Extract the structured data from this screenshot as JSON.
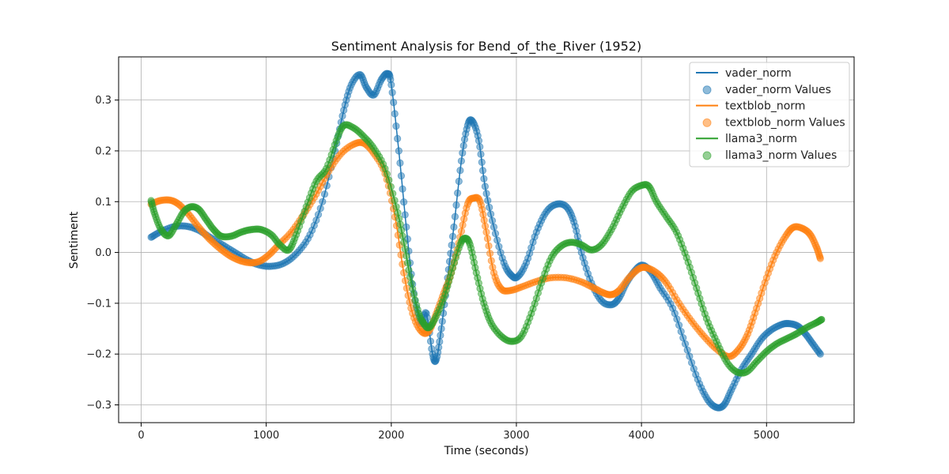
{
  "chart_data": {
    "type": "line",
    "title": "Sentiment Analysis for Bend_of_the_River (1952)",
    "xlabel": "Time (seconds)",
    "ylabel": "Sentiment",
    "xlim": [
      -180,
      5700
    ],
    "ylim": [
      -0.335,
      0.385
    ],
    "xticks": [
      0,
      1000,
      2000,
      3000,
      4000,
      5000
    ],
    "yticks": [
      -0.3,
      -0.2,
      -0.1,
      0.0,
      0.1,
      0.2,
      0.3
    ],
    "ytick_labels": [
      "−0.3",
      "−0.2",
      "−0.1",
      "0.0",
      "0.1",
      "0.2",
      "0.3"
    ],
    "grid": true,
    "legend_position": "top-right",
    "legend": [
      "vader_norm",
      "vader_norm Values",
      "textblob_norm",
      "textblob_norm Values",
      "llama3_norm",
      "llama3_norm Values"
    ],
    "series": [
      {
        "name": "vader_norm",
        "color": "#1f77b4",
        "points": [
          [
            80,
            0.03
          ],
          [
            150,
            0.04
          ],
          [
            250,
            0.05
          ],
          [
            350,
            0.052
          ],
          [
            450,
            0.045
          ],
          [
            550,
            0.03
          ],
          [
            650,
            0.015
          ],
          [
            750,
            0.0
          ],
          [
            850,
            -0.015
          ],
          [
            950,
            -0.025
          ],
          [
            1050,
            -0.027
          ],
          [
            1150,
            -0.02
          ],
          [
            1250,
            0.0
          ],
          [
            1350,
            0.035
          ],
          [
            1450,
            0.1
          ],
          [
            1550,
            0.2
          ],
          [
            1620,
            0.28
          ],
          [
            1680,
            0.33
          ],
          [
            1750,
            0.35
          ],
          [
            1800,
            0.325
          ],
          [
            1860,
            0.31
          ],
          [
            1920,
            0.34
          ],
          [
            1970,
            0.352
          ],
          [
            2000,
            0.33
          ],
          [
            2060,
            0.2
          ],
          [
            2120,
            0.05
          ],
          [
            2180,
            -0.08
          ],
          [
            2240,
            -0.14
          ],
          [
            2280,
            -0.12
          ],
          [
            2330,
            -0.2
          ],
          [
            2360,
            -0.21
          ],
          [
            2400,
            -0.15
          ],
          [
            2450,
            -0.05
          ],
          [
            2500,
            0.05
          ],
          [
            2560,
            0.18
          ],
          [
            2610,
            0.25
          ],
          [
            2650,
            0.258
          ],
          [
            2700,
            0.22
          ],
          [
            2750,
            0.13
          ],
          [
            2820,
            0.05
          ],
          [
            2900,
            -0.02
          ],
          [
            2960,
            -0.045
          ],
          [
            3010,
            -0.048
          ],
          [
            3080,
            -0.02
          ],
          [
            3160,
            0.04
          ],
          [
            3240,
            0.08
          ],
          [
            3320,
            0.095
          ],
          [
            3400,
            0.09
          ],
          [
            3460,
            0.06
          ],
          [
            3520,
            0.0
          ],
          [
            3600,
            -0.06
          ],
          [
            3680,
            -0.095
          ],
          [
            3760,
            -0.103
          ],
          [
            3820,
            -0.09
          ],
          [
            3880,
            -0.06
          ],
          [
            3950,
            -0.035
          ],
          [
            4010,
            -0.025
          ],
          [
            4080,
            -0.04
          ],
          [
            4150,
            -0.07
          ],
          [
            4250,
            -0.11
          ],
          [
            4350,
            -0.18
          ],
          [
            4450,
            -0.25
          ],
          [
            4530,
            -0.29
          ],
          [
            4600,
            -0.305
          ],
          [
            4660,
            -0.3
          ],
          [
            4720,
            -0.27
          ],
          [
            4800,
            -0.23
          ],
          [
            4880,
            -0.2
          ],
          [
            4960,
            -0.17
          ],
          [
            5040,
            -0.152
          ],
          [
            5120,
            -0.142
          ],
          [
            5180,
            -0.14
          ],
          [
            5250,
            -0.145
          ],
          [
            5310,
            -0.16
          ],
          [
            5370,
            -0.18
          ],
          [
            5430,
            -0.2
          ]
        ]
      },
      {
        "name": "textblob_norm",
        "color": "#ff7f0e",
        "points": [
          [
            80,
            0.095
          ],
          [
            150,
            0.102
          ],
          [
            230,
            0.103
          ],
          [
            300,
            0.095
          ],
          [
            380,
            0.075
          ],
          [
            460,
            0.05
          ],
          [
            540,
            0.028
          ],
          [
            620,
            0.01
          ],
          [
            700,
            -0.005
          ],
          [
            780,
            -0.015
          ],
          [
            860,
            -0.02
          ],
          [
            940,
            -0.018
          ],
          [
            1020,
            -0.005
          ],
          [
            1100,
            0.015
          ],
          [
            1200,
            0.04
          ],
          [
            1300,
            0.075
          ],
          [
            1400,
            0.115
          ],
          [
            1500,
            0.16
          ],
          [
            1600,
            0.195
          ],
          [
            1700,
            0.213
          ],
          [
            1780,
            0.215
          ],
          [
            1860,
            0.195
          ],
          [
            1950,
            0.155
          ],
          [
            2030,
            0.07
          ],
          [
            2100,
            -0.04
          ],
          [
            2170,
            -0.12
          ],
          [
            2240,
            -0.155
          ],
          [
            2300,
            -0.155
          ],
          [
            2360,
            -0.12
          ],
          [
            2420,
            -0.08
          ],
          [
            2480,
            -0.04
          ],
          [
            2550,
            0.03
          ],
          [
            2610,
            0.095
          ],
          [
            2660,
            0.107
          ],
          [
            2710,
            0.1
          ],
          [
            2760,
            0.04
          ],
          [
            2820,
            -0.04
          ],
          [
            2880,
            -0.072
          ],
          [
            2950,
            -0.075
          ],
          [
            3040,
            -0.068
          ],
          [
            3150,
            -0.058
          ],
          [
            3270,
            -0.05
          ],
          [
            3400,
            -0.05
          ],
          [
            3520,
            -0.058
          ],
          [
            3620,
            -0.07
          ],
          [
            3700,
            -0.08
          ],
          [
            3760,
            -0.083
          ],
          [
            3820,
            -0.075
          ],
          [
            3900,
            -0.05
          ],
          [
            3980,
            -0.032
          ],
          [
            4040,
            -0.03
          ],
          [
            4120,
            -0.04
          ],
          [
            4200,
            -0.06
          ],
          [
            4300,
            -0.1
          ],
          [
            4400,
            -0.135
          ],
          [
            4500,
            -0.165
          ],
          [
            4600,
            -0.19
          ],
          [
            4700,
            -0.205
          ],
          [
            4780,
            -0.19
          ],
          [
            4850,
            -0.16
          ],
          [
            4920,
            -0.11
          ],
          [
            5000,
            -0.05
          ],
          [
            5080,
            0.0
          ],
          [
            5160,
            0.035
          ],
          [
            5220,
            0.05
          ],
          [
            5290,
            0.047
          ],
          [
            5350,
            0.035
          ],
          [
            5400,
            0.01
          ],
          [
            5430,
            -0.012
          ]
        ]
      },
      {
        "name": "llama3_norm",
        "color": "#2ca02c",
        "points": [
          [
            80,
            0.102
          ],
          [
            110,
            0.075
          ],
          [
            160,
            0.045
          ],
          [
            220,
            0.033
          ],
          [
            280,
            0.055
          ],
          [
            340,
            0.08
          ],
          [
            400,
            0.09
          ],
          [
            460,
            0.085
          ],
          [
            520,
            0.065
          ],
          [
            580,
            0.045
          ],
          [
            640,
            0.032
          ],
          [
            720,
            0.032
          ],
          [
            800,
            0.04
          ],
          [
            880,
            0.045
          ],
          [
            960,
            0.045
          ],
          [
            1040,
            0.035
          ],
          [
            1110,
            0.015
          ],
          [
            1180,
            0.005
          ],
          [
            1240,
            0.035
          ],
          [
            1320,
            0.09
          ],
          [
            1400,
            0.14
          ],
          [
            1480,
            0.165
          ],
          [
            1560,
            0.22
          ],
          [
            1620,
            0.25
          ],
          [
            1700,
            0.245
          ],
          [
            1780,
            0.228
          ],
          [
            1860,
            0.205
          ],
          [
            1950,
            0.165
          ],
          [
            2040,
            0.09
          ],
          [
            2100,
            0.02
          ],
          [
            2160,
            -0.06
          ],
          [
            2220,
            -0.12
          ],
          [
            2260,
            -0.14
          ],
          [
            2300,
            -0.148
          ],
          [
            2350,
            -0.13
          ],
          [
            2420,
            -0.09
          ],
          [
            2480,
            -0.04
          ],
          [
            2550,
            0.015
          ],
          [
            2590,
            0.028
          ],
          [
            2630,
            0.015
          ],
          [
            2680,
            -0.04
          ],
          [
            2740,
            -0.1
          ],
          [
            2800,
            -0.14
          ],
          [
            2880,
            -0.165
          ],
          [
            2960,
            -0.175
          ],
          [
            3040,
            -0.165
          ],
          [
            3120,
            -0.12
          ],
          [
            3200,
            -0.06
          ],
          [
            3280,
            -0.01
          ],
          [
            3360,
            0.013
          ],
          [
            3440,
            0.02
          ],
          [
            3520,
            0.015
          ],
          [
            3600,
            0.005
          ],
          [
            3680,
            0.015
          ],
          [
            3760,
            0.045
          ],
          [
            3840,
            0.085
          ],
          [
            3920,
            0.12
          ],
          [
            4000,
            0.132
          ],
          [
            4060,
            0.13
          ],
          [
            4120,
            0.1
          ],
          [
            4200,
            0.07
          ],
          [
            4280,
            0.04
          ],
          [
            4360,
            -0.01
          ],
          [
            4440,
            -0.07
          ],
          [
            4520,
            -0.13
          ],
          [
            4600,
            -0.175
          ],
          [
            4680,
            -0.215
          ],
          [
            4760,
            -0.235
          ],
          [
            4840,
            -0.235
          ],
          [
            4920,
            -0.215
          ],
          [
            5000,
            -0.195
          ],
          [
            5080,
            -0.18
          ],
          [
            5160,
            -0.17
          ],
          [
            5240,
            -0.16
          ],
          [
            5320,
            -0.148
          ],
          [
            5400,
            -0.138
          ],
          [
            5440,
            -0.132
          ]
        ]
      }
    ]
  }
}
